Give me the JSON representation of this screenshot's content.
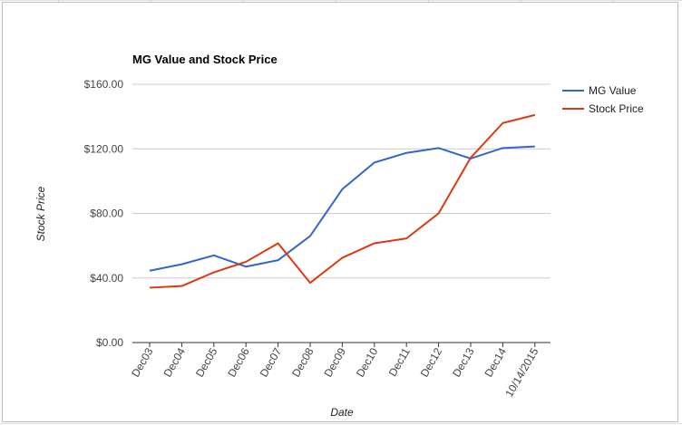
{
  "chart_data": {
    "type": "line",
    "title": "MG Value and Stock Price",
    "xlabel": "Date",
    "ylabel": "Stock Price",
    "categories": [
      "Dec03",
      "Dec04",
      "Dec05",
      "Dec06",
      "Dec07",
      "Dec08",
      "Dec09",
      "Dec10",
      "Dec11",
      "Dec12",
      "Dec13",
      "Dec14",
      "10/14/2015"
    ],
    "series": [
      {
        "name": "MG Value",
        "color": "#3366cc",
        "values": [
          44.5,
          48.5,
          54.0,
          47.0,
          51.0,
          66.0,
          95.0,
          111.5,
          117.5,
          120.5,
          114.0,
          120.5,
          121.5
        ]
      },
      {
        "name": "Stock Price",
        "color": "#dc3912",
        "values": [
          34.0,
          35.0,
          43.5,
          50.0,
          61.5,
          37.0,
          52.5,
          61.5,
          64.5,
          80.0,
          114.5,
          136.0,
          141.0
        ]
      }
    ],
    "ylim": [
      0,
      160
    ],
    "yticks": [
      0,
      40,
      80,
      120,
      160
    ],
    "ytick_labels": [
      "$0.00",
      "$40.00",
      "$80.00",
      "$120.00",
      "$160.00"
    ],
    "grid": true,
    "legend": "right"
  }
}
